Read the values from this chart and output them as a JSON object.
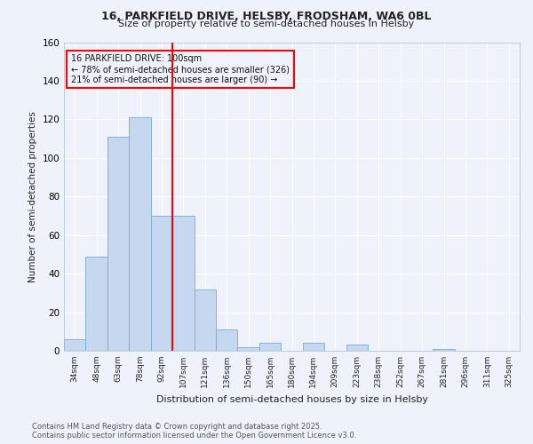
{
  "title1": "16, PARKFIELD DRIVE, HELSBY, FRODSHAM, WA6 0BL",
  "title2": "Size of property relative to semi-detached houses in Helsby",
  "xlabel": "Distribution of semi-detached houses by size in Helsby",
  "ylabel": "Number of semi-detached properties",
  "bin_labels": [
    "34sqm",
    "48sqm",
    "63sqm",
    "78sqm",
    "92sqm",
    "107sqm",
    "121sqm",
    "136sqm",
    "150sqm",
    "165sqm",
    "180sqm",
    "194sqm",
    "209sqm",
    "223sqm",
    "238sqm",
    "252sqm",
    "267sqm",
    "281sqm",
    "296sqm",
    "311sqm",
    "325sqm"
  ],
  "bar_heights": [
    6,
    49,
    111,
    121,
    70,
    70,
    32,
    11,
    2,
    4,
    0,
    4,
    0,
    3,
    0,
    0,
    0,
    1,
    0,
    0,
    0
  ],
  "bar_color": "#c5d8f0",
  "bar_edge_color": "#7aabcf",
  "vline_color": "red",
  "annotation_title": "16 PARKFIELD DRIVE: 100sqm",
  "annotation_line1": "← 78% of semi-detached houses are smaller (326)",
  "annotation_line2": "21% of semi-detached houses are larger (90) →",
  "annotation_box_edge": "red",
  "ylim": [
    0,
    160
  ],
  "yticks": [
    0,
    20,
    40,
    60,
    80,
    100,
    120,
    140,
    160
  ],
  "footer1": "Contains HM Land Registry data © Crown copyright and database right 2025.",
  "footer2": "Contains public sector information licensed under the Open Government Licence v3.0.",
  "bg_color": "#eef2fa",
  "grid_color": "#ffffff",
  "plot_bg": "#eef2fa"
}
